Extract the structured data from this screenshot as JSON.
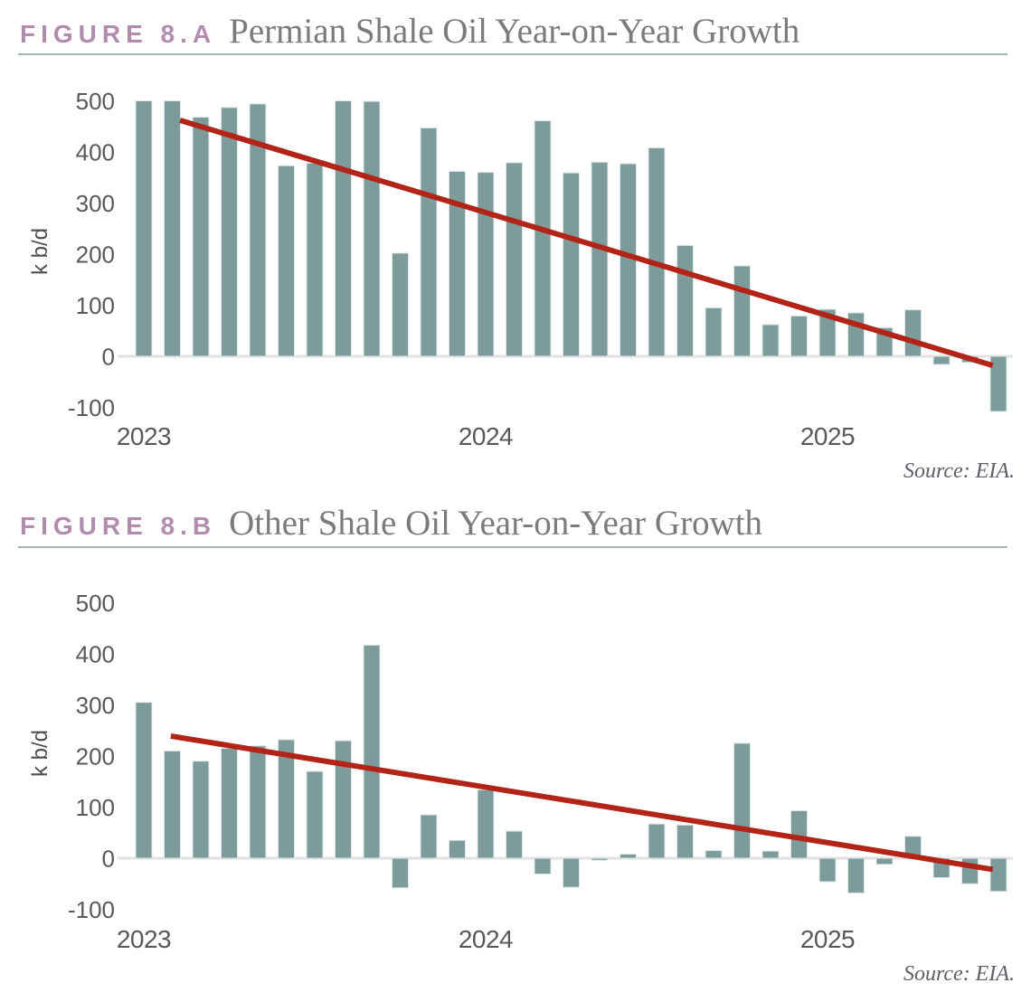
{
  "figure_a": {
    "label": "FIGURE 8.A",
    "title": "Permian Shale Oil Year-on-Year Growth",
    "source": "Source: EIA."
  },
  "figure_b": {
    "label": "FIGURE 8.B",
    "title": "Other Shale Oil Year-on-Year Growth",
    "source": "Source: EIA."
  },
  "colors": {
    "bar": "#7e9b9b",
    "bar_edge": "#dde7e7",
    "trend": "#b22318",
    "figure_label": "#b18cad",
    "title_text": "#7b7b7b",
    "axis_text": "#595959",
    "ylabel_text": "#4f4f4f",
    "rule": "#a3b7b4",
    "zero_line": "#e2e2e2",
    "source_text": "#5d6166"
  },
  "chart_data": [
    {
      "type": "bar",
      "figure": "8.A",
      "title": "Permian Shale Oil Year-on-Year Growth",
      "ylabel": "k b/d",
      "yticks": [
        500,
        400,
        300,
        200,
        100,
        0,
        -100
      ],
      "ylim": [
        -130,
        520
      ],
      "x_unit": "month",
      "x_tick_labels": [
        {
          "label": "2023",
          "index": 0
        },
        {
          "label": "2024",
          "index": 12
        },
        {
          "label": "2025",
          "index": 24
        }
      ],
      "values": [
        500,
        500,
        468,
        487,
        494,
        373,
        378,
        500,
        499,
        202,
        447,
        362,
        360,
        379,
        461,
        359,
        380,
        377,
        408,
        217,
        95,
        177,
        62,
        79,
        92,
        85,
        56,
        91,
        -16,
        -12,
        -108
      ],
      "trendline": {
        "from_index": 1.27,
        "from_value": 462,
        "to_index": 29.8,
        "to_value": -18
      },
      "grid": "zero-line-only",
      "legend": "none",
      "source": "Source: EIA."
    },
    {
      "type": "bar",
      "figure": "8.B",
      "title": "Other Shale Oil Year-on-Year Growth",
      "ylabel": "k b/d",
      "yticks": [
        500,
        400,
        300,
        200,
        100,
        0,
        -100
      ],
      "ylim": [
        -130,
        520
      ],
      "x_unit": "month",
      "x_tick_labels": [
        {
          "label": "2023",
          "index": 0
        },
        {
          "label": "2024",
          "index": 12
        },
        {
          "label": "2025",
          "index": 24
        }
      ],
      "values": [
        305,
        210,
        190,
        215,
        220,
        232,
        170,
        230,
        417,
        -58,
        85,
        35,
        134,
        53,
        -31,
        -57,
        -4,
        8,
        67,
        65,
        15,
        225,
        14,
        93,
        -46,
        -68,
        -12,
        43,
        -38,
        -50,
        -65
      ],
      "trendline": {
        "from_index": 0.95,
        "from_value": 239,
        "to_index": 29.8,
        "to_value": -22
      },
      "grid": "zero-line-only",
      "legend": "none",
      "source": "Source: EIA."
    }
  ]
}
